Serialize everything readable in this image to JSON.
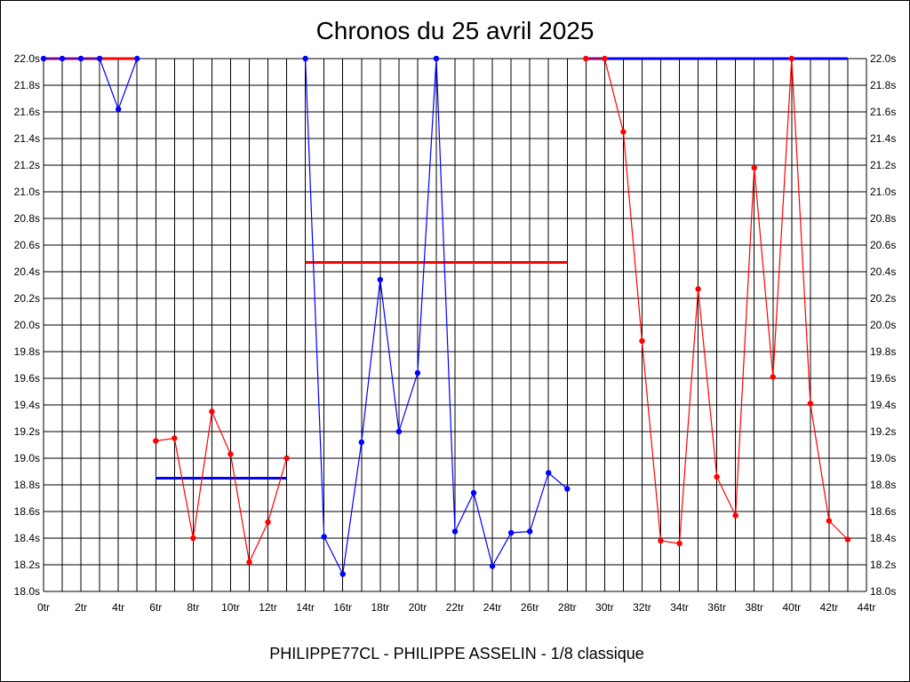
{
  "chart_data": {
    "type": "line",
    "title": "Chronos du 25 avril 2025",
    "footer": "PHILIPPE77CL - PHILIPPE ASSELIN - 1/8 classique",
    "xlabel": "",
    "ylabel": "",
    "xlim": [
      0,
      44
    ],
    "ylim": [
      18.0,
      22.0
    ],
    "grid": true,
    "x_ticks": [
      0,
      2,
      4,
      6,
      8,
      10,
      12,
      14,
      16,
      18,
      20,
      22,
      24,
      26,
      28,
      30,
      32,
      34,
      36,
      38,
      40,
      42,
      44
    ],
    "x_tick_labels": [
      "0tr",
      "2tr",
      "4tr",
      "6tr",
      "8tr",
      "10tr",
      "12tr",
      "14tr",
      "16tr",
      "18tr",
      "20tr",
      "22tr",
      "24tr",
      "26tr",
      "28tr",
      "30tr",
      "32tr",
      "34tr",
      "36tr",
      "38tr",
      "40tr",
      "42tr",
      "44tr"
    ],
    "y_ticks": [
      18.0,
      18.2,
      18.4,
      18.6,
      18.8,
      19.0,
      19.2,
      19.4,
      19.6,
      19.8,
      20.0,
      20.2,
      20.4,
      20.6,
      20.8,
      21.0,
      21.2,
      21.4,
      21.6,
      21.8,
      22.0
    ],
    "y_tick_labels": [
      "18.0s",
      "18.2s",
      "18.4s",
      "18.6s",
      "18.8s",
      "19.0s",
      "19.2s",
      "19.4s",
      "19.6s",
      "19.8s",
      "20.0s",
      "20.2s",
      "20.4s",
      "20.6s",
      "20.8s",
      "21.0s",
      "21.2s",
      "21.4s",
      "21.6s",
      "21.8s",
      "22.0s"
    ],
    "series": [
      {
        "color": "#0000ff",
        "x": [
          0,
          1,
          2,
          3,
          4,
          5
        ],
        "values": [
          22.0,
          22.0,
          22.0,
          22.0,
          21.62,
          22.0
        ]
      },
      {
        "color": "#ff0000",
        "x": [
          6,
          7,
          8,
          9,
          10,
          11,
          12,
          13
        ],
        "values": [
          19.13,
          19.15,
          18.4,
          19.35,
          19.03,
          18.22,
          18.52,
          19.0
        ]
      },
      {
        "color": "#0000ff",
        "x": [
          14,
          15,
          16,
          17,
          18,
          19,
          20,
          21,
          22,
          23,
          24,
          25,
          26,
          27,
          28
        ],
        "values": [
          22.0,
          18.41,
          18.13,
          19.12,
          20.34,
          19.2,
          19.64,
          22.0,
          18.45,
          18.74,
          18.19,
          18.44,
          18.45,
          18.89,
          18.77
        ]
      },
      {
        "color": "#ff0000",
        "x": [
          29,
          30,
          31,
          32,
          33,
          34,
          35,
          36,
          37,
          38,
          39,
          40,
          41,
          42,
          43
        ],
        "values": [
          22.0,
          22.0,
          21.45,
          19.88,
          18.38,
          18.36,
          20.27,
          18.86,
          18.57,
          21.18,
          19.61,
          22.0,
          19.41,
          18.53,
          18.39
        ]
      }
    ],
    "averages": [
      {
        "color": "#ff0000",
        "x_start": 0,
        "x_end": 5,
        "value": 22.0
      },
      {
        "color": "#0000ff",
        "x_start": 6,
        "x_end": 13,
        "value": 18.85
      },
      {
        "color": "#ff0000",
        "x_start": 14,
        "x_end": 28,
        "value": 20.47
      },
      {
        "color": "#0000ff",
        "x_start": 29,
        "x_end": 43,
        "value": 22.0
      }
    ]
  }
}
